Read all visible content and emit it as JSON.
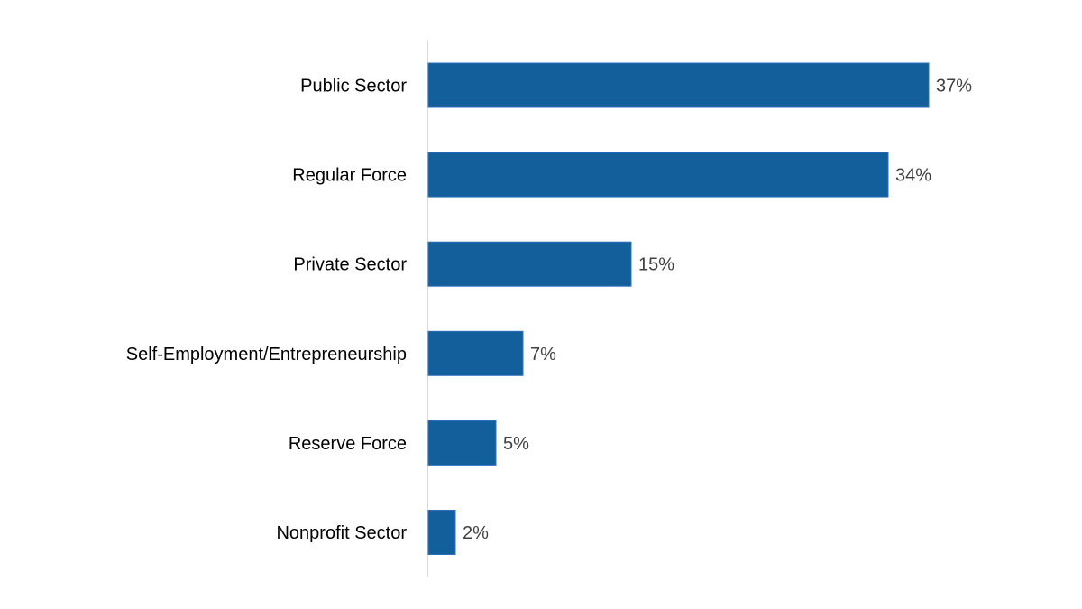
{
  "chart_data": {
    "type": "bar",
    "orientation": "horizontal",
    "categories": [
      "Public Sector",
      "Regular Force",
      "Private Sector",
      "Self-Employment/Entrepreneurship",
      "Reserve Force",
      "Nonprofit Sector"
    ],
    "values": [
      37,
      34,
      15,
      7,
      5,
      2
    ],
    "data_labels": [
      "37%",
      "34%",
      "15%",
      "7%",
      "5%",
      "2%"
    ],
    "unit": "%",
    "xlim": [
      0,
      40
    ],
    "grid": false,
    "legend": "none",
    "colors": {
      "bar": "#125f9b",
      "bar_edge": "#2e6fc0",
      "axis": "#d9d9d9",
      "label": "#000000",
      "value_label": "#404040"
    }
  }
}
